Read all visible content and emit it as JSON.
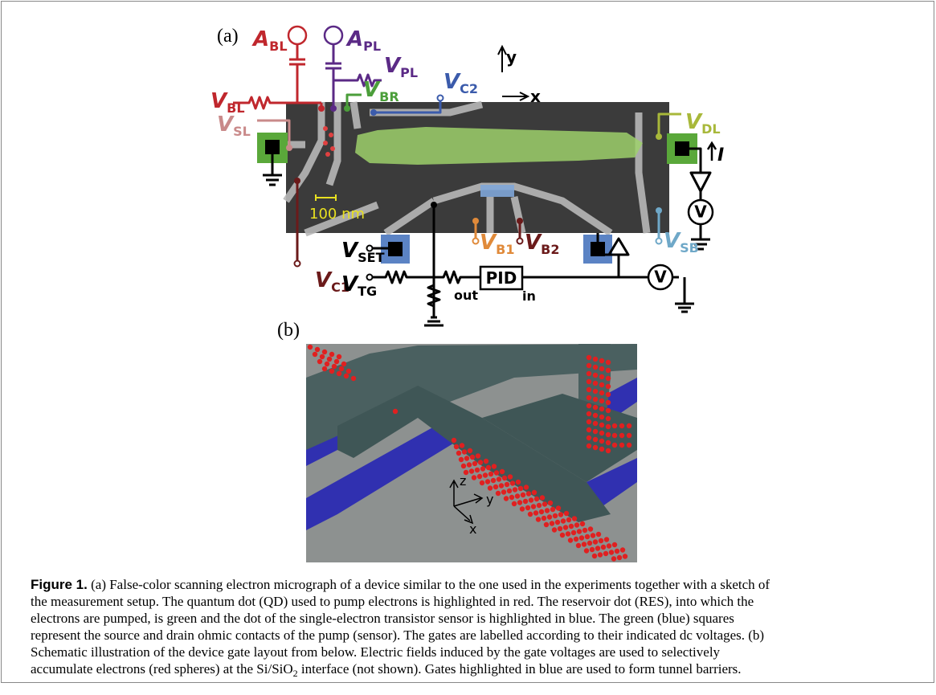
{
  "panel_a": {
    "label": "(a)",
    "gate_labels": [
      {
        "main": "A",
        "sub": "BL"
      },
      {
        "main": "A",
        "sub": "PL"
      },
      {
        "main": "V",
        "sub": "PL"
      },
      {
        "main": "V",
        "sub": "BL"
      },
      {
        "main": "V",
        "sub": "BR"
      },
      {
        "main": "V",
        "sub": "C2"
      },
      {
        "main": "V",
        "sub": "SL"
      },
      {
        "main": "V",
        "sub": "DL"
      },
      {
        "main": "V",
        "sub": "SET"
      },
      {
        "main": "V",
        "sub": "B1"
      },
      {
        "main": "V",
        "sub": "B2"
      },
      {
        "main": "V",
        "sub": "SB"
      },
      {
        "main": "V",
        "sub": "C1"
      },
      {
        "main": "V",
        "sub": "TG"
      }
    ],
    "current": "I",
    "meter": "V",
    "scale_bar": "100 nm",
    "pid": "PID",
    "out": "out",
    "in": "in",
    "axis_x": "x",
    "axis_y": "y"
  },
  "panel_b": {
    "label": "(b)",
    "axis_x": "x",
    "axis_y": "y",
    "axis_z": "z"
  },
  "caption": {
    "label": "Figure 1.",
    "lines": [
      " (a) False-color scanning electron micrograph of a device similar to the one used in the experiments together with a sketch of",
      "the measurement setup. The quantum dot (QD) used to pump electrons is highlighted in red. The reservoir dot (RES), into which the",
      "electrons are pumped, is green and the dot of the single-electron transistor sensor is highlighted in blue. The green (blue) squares",
      "represent the source and drain ohmic contacts of the pump (sensor). The gates are labelled according to their indicated dc voltages. (b)",
      "Schematic illustration of the device gate layout from below. Electric fields induced by the gate voltages are used to selectively"
    ],
    "last_before": "accumulate electrons (red spheres) at the Si/SiO",
    "last_sub": "2",
    "last_after": " interface (not shown). Gates highlighted in blue are used to form tunnel barriers."
  }
}
